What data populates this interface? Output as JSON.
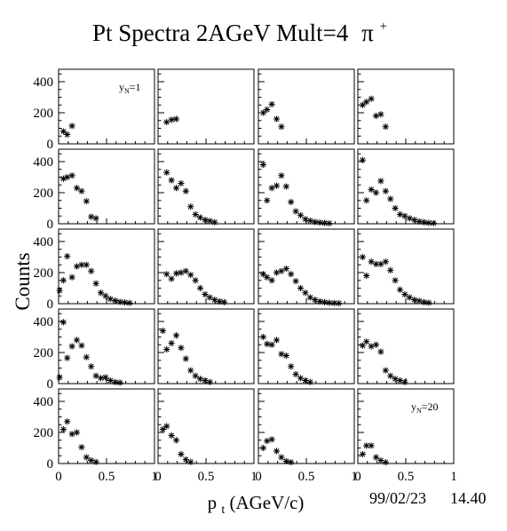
{
  "page": {
    "title": "Pt Spectra 2AGeV Mult=4",
    "title_symbol": "π",
    "title_superscript": "+",
    "y_axis_title": "Counts",
    "x_axis_title_main": "p",
    "x_axis_title_sub": "t",
    "x_axis_title_units": " (AGeV/c)",
    "date": "99/02/23",
    "time": "14.40",
    "panel_label_first": {
      "main": "y",
      "sub": "N",
      "value": "=1"
    },
    "panel_label_last": {
      "main": "y",
      "sub": "N",
      "value": "=20"
    },
    "y_tick_labels": [
      "0",
      "200",
      "400"
    ],
    "x_tick_labels": [
      "0",
      "0.5",
      "1"
    ]
  },
  "chart_data": {
    "type": "scatter",
    "layout": {
      "rows": 5,
      "cols": 4
    },
    "xlabel": "pt (AGeV/c)",
    "ylabel": "Counts",
    "xlim": [
      0,
      1
    ],
    "ylim": [
      0,
      480
    ],
    "marker": "asterisk",
    "panels": [
      {
        "label": "yN=1",
        "points": [
          [
            0.05,
            80
          ],
          [
            0.09,
            60
          ],
          [
            0.14,
            115
          ]
        ]
      },
      {
        "points": [
          [
            0.09,
            140
          ],
          [
            0.14,
            155
          ],
          [
            0.19,
            160
          ]
        ]
      },
      {
        "points": [
          [
            0.05,
            200
          ],
          [
            0.09,
            220
          ],
          [
            0.14,
            255
          ],
          [
            0.19,
            160
          ],
          [
            0.24,
            110
          ]
        ]
      },
      {
        "points": [
          [
            0.05,
            250
          ],
          [
            0.09,
            270
          ],
          [
            0.14,
            290
          ],
          [
            0.19,
            180
          ],
          [
            0.24,
            190
          ],
          [
            0.29,
            110
          ]
        ]
      },
      {
        "points": [
          [
            0.05,
            290
          ],
          [
            0.09,
            300
          ],
          [
            0.14,
            310
          ],
          [
            0.19,
            230
          ],
          [
            0.24,
            210
          ],
          [
            0.29,
            145
          ],
          [
            0.34,
            45
          ],
          [
            0.39,
            35
          ]
        ]
      },
      {
        "points": [
          [
            0.09,
            330
          ],
          [
            0.14,
            280
          ],
          [
            0.19,
            230
          ],
          [
            0.24,
            260
          ],
          [
            0.29,
            210
          ],
          [
            0.34,
            110
          ],
          [
            0.39,
            60
          ],
          [
            0.44,
            40
          ],
          [
            0.49,
            25
          ],
          [
            0.54,
            18
          ],
          [
            0.59,
            10
          ]
        ]
      },
      {
        "points": [
          [
            0.05,
            380
          ],
          [
            0.09,
            150
          ],
          [
            0.14,
            230
          ],
          [
            0.19,
            245
          ],
          [
            0.24,
            310
          ],
          [
            0.29,
            240
          ],
          [
            0.34,
            140
          ],
          [
            0.39,
            80
          ],
          [
            0.44,
            55
          ],
          [
            0.49,
            30
          ],
          [
            0.54,
            20
          ],
          [
            0.59,
            12
          ],
          [
            0.64,
            8
          ],
          [
            0.69,
            5
          ],
          [
            0.74,
            3
          ]
        ]
      },
      {
        "points": [
          [
            0.05,
            410
          ],
          [
            0.09,
            150
          ],
          [
            0.14,
            220
          ],
          [
            0.19,
            200
          ],
          [
            0.24,
            275
          ],
          [
            0.29,
            210
          ],
          [
            0.34,
            160
          ],
          [
            0.39,
            100
          ],
          [
            0.44,
            60
          ],
          [
            0.49,
            50
          ],
          [
            0.54,
            35
          ],
          [
            0.59,
            25
          ],
          [
            0.64,
            15
          ],
          [
            0.69,
            10
          ],
          [
            0.74,
            6
          ],
          [
            0.79,
            4
          ]
        ]
      },
      {
        "points": [
          [
            0.01,
            85
          ],
          [
            0.05,
            150
          ],
          [
            0.09,
            305
          ],
          [
            0.14,
            170
          ],
          [
            0.19,
            240
          ],
          [
            0.24,
            250
          ],
          [
            0.29,
            250
          ],
          [
            0.34,
            210
          ],
          [
            0.39,
            130
          ],
          [
            0.44,
            70
          ],
          [
            0.49,
            50
          ],
          [
            0.54,
            30
          ],
          [
            0.59,
            20
          ],
          [
            0.64,
            12
          ],
          [
            0.69,
            8
          ],
          [
            0.74,
            5
          ]
        ]
      },
      {
        "points": [
          [
            0.09,
            190
          ],
          [
            0.14,
            160
          ],
          [
            0.19,
            195
          ],
          [
            0.24,
            200
          ],
          [
            0.29,
            210
          ],
          [
            0.34,
            185
          ],
          [
            0.39,
            150
          ],
          [
            0.44,
            100
          ],
          [
            0.49,
            60
          ],
          [
            0.54,
            40
          ],
          [
            0.59,
            25
          ],
          [
            0.64,
            15
          ],
          [
            0.69,
            10
          ]
        ]
      },
      {
        "points": [
          [
            0.05,
            190
          ],
          [
            0.09,
            170
          ],
          [
            0.14,
            150
          ],
          [
            0.19,
            200
          ],
          [
            0.24,
            210
          ],
          [
            0.29,
            225
          ],
          [
            0.34,
            190
          ],
          [
            0.39,
            145
          ],
          [
            0.44,
            100
          ],
          [
            0.49,
            70
          ],
          [
            0.54,
            40
          ],
          [
            0.59,
            25
          ],
          [
            0.64,
            15
          ],
          [
            0.69,
            10
          ],
          [
            0.74,
            6
          ],
          [
            0.79,
            4
          ],
          [
            0.84,
            3
          ]
        ]
      },
      {
        "points": [
          [
            0.05,
            300
          ],
          [
            0.09,
            180
          ],
          [
            0.14,
            270
          ],
          [
            0.19,
            255
          ],
          [
            0.24,
            255
          ],
          [
            0.29,
            270
          ],
          [
            0.34,
            215
          ],
          [
            0.39,
            150
          ],
          [
            0.44,
            90
          ],
          [
            0.49,
            60
          ],
          [
            0.54,
            40
          ],
          [
            0.59,
            25
          ],
          [
            0.64,
            18
          ],
          [
            0.69,
            10
          ],
          [
            0.74,
            6
          ]
        ]
      },
      {
        "points": [
          [
            0.01,
            40
          ],
          [
            0.05,
            395
          ],
          [
            0.09,
            165
          ],
          [
            0.14,
            240
          ],
          [
            0.19,
            280
          ],
          [
            0.24,
            245
          ],
          [
            0.29,
            170
          ],
          [
            0.34,
            110
          ],
          [
            0.39,
            50
          ],
          [
            0.44,
            35
          ],
          [
            0.49,
            40
          ],
          [
            0.54,
            20
          ],
          [
            0.59,
            10
          ],
          [
            0.64,
            6
          ]
        ]
      },
      {
        "points": [
          [
            0.05,
            340
          ],
          [
            0.09,
            220
          ],
          [
            0.14,
            260
          ],
          [
            0.19,
            310
          ],
          [
            0.24,
            230
          ],
          [
            0.29,
            160
          ],
          [
            0.34,
            85
          ],
          [
            0.39,
            50
          ],
          [
            0.44,
            30
          ],
          [
            0.49,
            20
          ],
          [
            0.54,
            10
          ]
        ]
      },
      {
        "points": [
          [
            0.05,
            300
          ],
          [
            0.09,
            255
          ],
          [
            0.14,
            250
          ],
          [
            0.19,
            280
          ],
          [
            0.24,
            190
          ],
          [
            0.29,
            180
          ],
          [
            0.34,
            110
          ],
          [
            0.39,
            60
          ],
          [
            0.44,
            35
          ],
          [
            0.49,
            20
          ],
          [
            0.54,
            10
          ]
        ]
      },
      {
        "points": [
          [
            0.05,
            245
          ],
          [
            0.09,
            270
          ],
          [
            0.14,
            240
          ],
          [
            0.19,
            250
          ],
          [
            0.24,
            205
          ],
          [
            0.29,
            85
          ],
          [
            0.34,
            50
          ],
          [
            0.39,
            30
          ],
          [
            0.44,
            20
          ],
          [
            0.49,
            10
          ]
        ]
      },
      {
        "points": [
          [
            0.05,
            220
          ],
          [
            0.09,
            270
          ],
          [
            0.14,
            190
          ],
          [
            0.19,
            200
          ],
          [
            0.24,
            105
          ],
          [
            0.29,
            40
          ],
          [
            0.34,
            20
          ],
          [
            0.39,
            10
          ]
        ]
      },
      {
        "points": [
          [
            0.05,
            220
          ],
          [
            0.09,
            240
          ],
          [
            0.14,
            180
          ],
          [
            0.19,
            150
          ],
          [
            0.24,
            60
          ],
          [
            0.29,
            25
          ],
          [
            0.34,
            10
          ]
        ]
      },
      {
        "points": [
          [
            0.05,
            100
          ],
          [
            0.09,
            145
          ],
          [
            0.14,
            155
          ],
          [
            0.19,
            80
          ],
          [
            0.24,
            40
          ],
          [
            0.29,
            15
          ],
          [
            0.34,
            8
          ]
        ]
      },
      {
        "label": "yN=20",
        "points": [
          [
            0.05,
            60
          ],
          [
            0.09,
            115
          ],
          [
            0.14,
            115
          ],
          [
            0.19,
            40
          ],
          [
            0.24,
            20
          ],
          [
            0.29,
            8
          ]
        ]
      }
    ]
  }
}
